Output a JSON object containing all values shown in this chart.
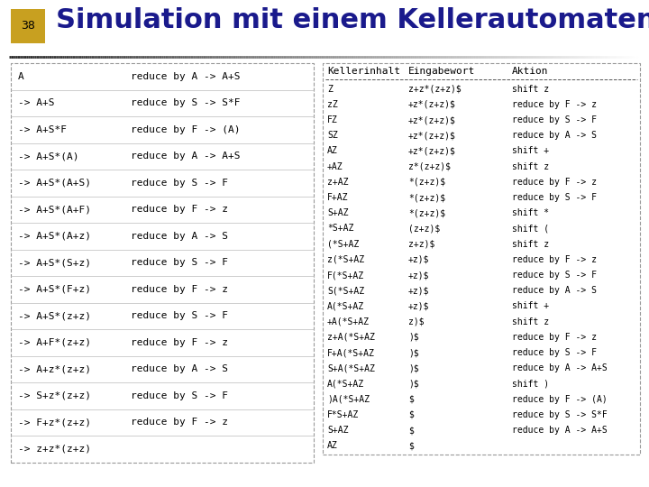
{
  "title": "Simulation mit einem Kellerautomaten",
  "slide_number": "38",
  "title_color": "#1a1a8c",
  "title_fontsize": 22,
  "slide_num_bg": "#c8a020",
  "bg_color": "#ffffff",
  "left_table_rows": [
    [
      "A",
      "reduce by A -> A+S"
    ],
    [
      "-> A+S",
      "reduce by S -> S*F"
    ],
    [
      "-> A+S*F",
      "reduce by F -> (A)"
    ],
    [
      "-> A+S*(A)",
      "reduce by A -> A+S"
    ],
    [
      "-> A+S*(A+S)",
      "reduce by S -> F"
    ],
    [
      "-> A+S*(A+F)",
      "reduce by F -> z"
    ],
    [
      "-> A+S*(A+z)",
      "reduce by A -> S"
    ],
    [
      "-> A+S*(S+z)",
      "reduce by S -> F"
    ],
    [
      "-> A+S*(F+z)",
      "reduce by F -> z"
    ],
    [
      "-> A+S*(z+z)",
      "reduce by S -> F"
    ],
    [
      "-> A+F*(z+z)",
      "reduce by F -> z"
    ],
    [
      "-> A+z*(z+z)",
      "reduce by A -> S"
    ],
    [
      "-> S+z*(z+z)",
      "reduce by S -> F"
    ],
    [
      "-> F+z*(z+z)",
      "reduce by F -> z"
    ],
    [
      "-> z+z*(z+z)",
      ""
    ]
  ],
  "right_header": [
    "Kellerinhalt",
    "Eingabewort",
    "Aktion"
  ],
  "right_table_rows": [
    [
      "Z",
      "z+z*(z+z)$",
      "shift z"
    ],
    [
      "zZ",
      "+z*(z+z)$",
      "reduce by F -> z"
    ],
    [
      "FZ",
      "+z*(z+z)$",
      "reduce by S -> F"
    ],
    [
      "SZ",
      "+z*(z+z)$",
      "reduce by A -> S"
    ],
    [
      "AZ",
      "+z*(z+z)$",
      "shift +"
    ],
    [
      "+AZ",
      "z*(z+z)$",
      "shift z"
    ],
    [
      "z+AZ",
      "*(z+z)$",
      "reduce by F -> z"
    ],
    [
      "F+AZ",
      "*(z+z)$",
      "reduce by S -> F"
    ],
    [
      "S+AZ",
      "*(z+z)$",
      "shift *"
    ],
    [
      "*S+AZ",
      "(z+z)$",
      "shift ("
    ],
    [
      "(*S+AZ",
      "z+z)$",
      "shift z"
    ],
    [
      "z(*S+AZ",
      "+z)$",
      "reduce by F -> z"
    ],
    [
      "F(*S+AZ",
      "+z)$",
      "reduce by S -> F"
    ],
    [
      "S(*S+AZ",
      "+z)$",
      "reduce by A -> S"
    ],
    [
      "A(*S+AZ",
      "+z)$",
      "shift +"
    ],
    [
      "+A(*S+AZ",
      "z)$",
      "shift z"
    ],
    [
      "z+A(*S+AZ",
      ")$",
      "reduce by F -> z"
    ],
    [
      "F+A(*S+AZ",
      ")$",
      "reduce by S -> F"
    ],
    [
      "S+A(*S+AZ",
      ")$",
      "reduce by A -> A+S"
    ],
    [
      "A(*S+AZ",
      ")$",
      "shift )"
    ],
    [
      ")A(*S+AZ",
      "$",
      "reduce by F -> (A)"
    ],
    [
      "F*S+AZ",
      "$",
      "reduce by S -> S*F"
    ],
    [
      "S+AZ",
      "$",
      "reduce by A -> A+S"
    ],
    [
      "AZ",
      "$",
      ""
    ]
  ]
}
